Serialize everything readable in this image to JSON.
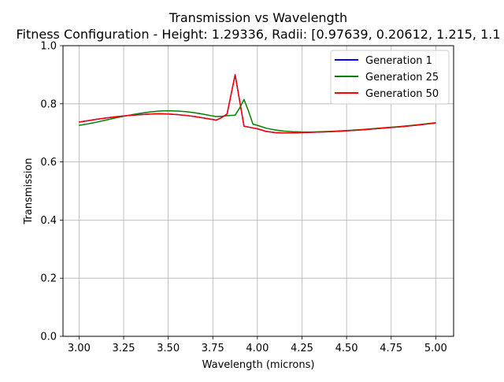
{
  "chart_data": {
    "type": "line",
    "title": "Transmission vs Wavelength",
    "subtitle": "Fitness Configuration - Height: 1.29336, Radii: [0.97639, 0.20612, 1.215, 1.1",
    "xlabel": "Wavelength (microns)",
    "ylabel": "Transmission",
    "xlim": [
      2.91,
      5.1
    ],
    "ylim": [
      0.0,
      1.0
    ],
    "xticks": [
      "3.00",
      "3.25",
      "3.50",
      "3.75",
      "4.00",
      "4.25",
      "4.50",
      "4.75",
      "5.00"
    ],
    "yticks": [
      "0.0",
      "0.2",
      "0.4",
      "0.6",
      "0.8",
      "1.0"
    ],
    "grid": true,
    "legend_position": "top-right",
    "x": [
      3.0,
      3.05,
      3.1,
      3.15,
      3.2,
      3.25,
      3.3,
      3.35,
      3.4,
      3.45,
      3.5,
      3.55,
      3.6,
      3.65,
      3.7,
      3.75,
      3.77,
      3.8,
      3.83,
      3.875,
      3.9,
      3.925,
      3.95,
      3.975,
      4.0,
      4.05,
      4.1,
      4.15,
      4.2,
      4.25,
      4.3,
      4.35,
      4.4,
      4.5,
      4.6,
      4.7,
      4.8,
      4.9,
      5.0
    ],
    "series": [
      {
        "name": "Generation 1",
        "color": "#0000ff",
        "values": [
          0.737,
          0.742,
          0.747,
          0.751,
          0.755,
          0.758,
          0.761,
          0.763,
          0.765,
          0.766,
          0.765,
          0.763,
          0.76,
          0.756,
          0.751,
          0.746,
          0.744,
          0.753,
          0.765,
          0.9,
          0.812,
          0.723,
          0.72,
          0.717,
          0.714,
          0.705,
          0.701,
          0.7,
          0.7,
          0.701,
          0.702,
          0.703,
          0.704,
          0.707,
          0.711,
          0.716,
          0.721,
          0.727,
          0.734
        ]
      },
      {
        "name": "Generation 25",
        "color": "#008000",
        "values": [
          0.726,
          0.731,
          0.737,
          0.744,
          0.751,
          0.757,
          0.763,
          0.768,
          0.772,
          0.775,
          0.776,
          0.775,
          0.773,
          0.769,
          0.764,
          0.758,
          0.756,
          0.757,
          0.759,
          0.761,
          0.785,
          0.815,
          0.775,
          0.73,
          0.726,
          0.716,
          0.71,
          0.706,
          0.704,
          0.703,
          0.703,
          0.704,
          0.705,
          0.708,
          0.712,
          0.717,
          0.722,
          0.728,
          0.735
        ]
      },
      {
        "name": "Generation 50",
        "color": "#ff0000",
        "values": [
          0.737,
          0.742,
          0.747,
          0.751,
          0.755,
          0.758,
          0.761,
          0.763,
          0.765,
          0.766,
          0.765,
          0.763,
          0.76,
          0.756,
          0.751,
          0.746,
          0.744,
          0.753,
          0.765,
          0.9,
          0.812,
          0.723,
          0.72,
          0.717,
          0.714,
          0.705,
          0.701,
          0.7,
          0.7,
          0.701,
          0.702,
          0.703,
          0.704,
          0.707,
          0.711,
          0.716,
          0.721,
          0.727,
          0.734
        ]
      }
    ]
  }
}
